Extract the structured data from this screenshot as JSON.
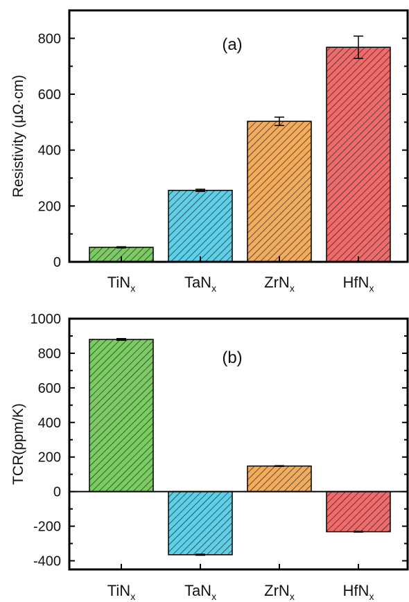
{
  "colors": {
    "TiNx": "#7acc62",
    "TaNx": "#5ecfe6",
    "ZrNx": "#f3ac5e",
    "HfNx": "#ef6a6a",
    "axis": "#000000",
    "hatch": "#1a1a1a"
  },
  "chart_data": [
    {
      "type": "bar",
      "panel_label": "(a)",
      "ylabel": "Resistivity (μΩ·cm)",
      "categories": [
        {
          "base": "TiN",
          "sub": "x"
        },
        {
          "base": "TaN",
          "sub": "x"
        },
        {
          "base": "ZrN",
          "sub": "x"
        },
        {
          "base": "HfN",
          "sub": "x"
        }
      ],
      "values": [
        52,
        256,
        503,
        768
      ],
      "errors": [
        2,
        4,
        15,
        40
      ],
      "ylim": [
        0,
        900
      ],
      "yticks": [
        "0",
        "200",
        "400",
        "600",
        "800"
      ],
      "ytick_values": [
        0,
        200,
        400,
        600,
        800
      ],
      "grid": false
    },
    {
      "type": "bar",
      "panel_label": "(b)",
      "ylabel": "TCR(ppm/K)",
      "categories": [
        {
          "base": "TiN",
          "sub": "x"
        },
        {
          "base": "TaN",
          "sub": "x"
        },
        {
          "base": "ZrN",
          "sub": "x"
        },
        {
          "base": "HfN",
          "sub": "x"
        }
      ],
      "values": [
        880,
        -365,
        148,
        -232
      ],
      "errors": [
        5,
        3,
        2,
        2
      ],
      "ylim": [
        -450,
        1000
      ],
      "yticks": [
        "-400",
        "-200",
        "0",
        "200",
        "400",
        "600",
        "800",
        "1000"
      ],
      "ytick_values": [
        -400,
        -200,
        0,
        200,
        400,
        600,
        800,
        1000
      ],
      "grid": false
    }
  ]
}
